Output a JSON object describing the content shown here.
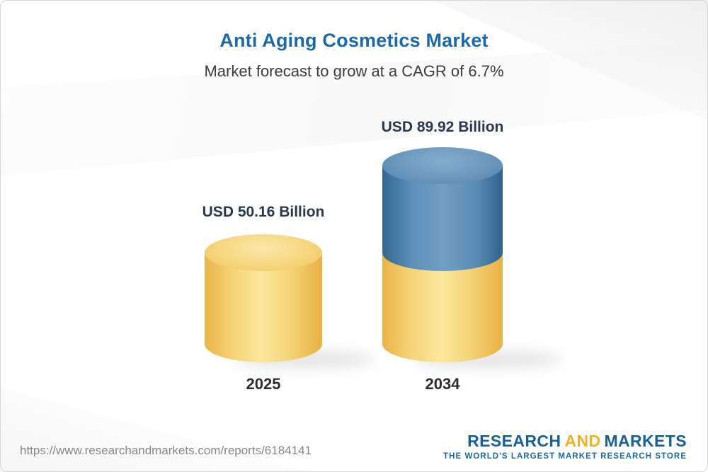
{
  "header": {
    "title": "Anti Aging Cosmetics Market",
    "subtitle": "Market forecast to grow at a CAGR of 6.7%"
  },
  "chart_data": {
    "type": "bar",
    "style": "3d-cylinder pictorial bars, no axes, no gridlines",
    "title": "Anti Aging Cosmetics Market",
    "subtitle": "Market forecast to grow at a CAGR of 6.7%",
    "unit": "USD Billion",
    "cagr_percent": 6.7,
    "categories": [
      "2025",
      "2034"
    ],
    "values": [
      50.16,
      89.92
    ],
    "bars": [
      {
        "year": "2025",
        "value": 50.16,
        "label": "USD 50.16 Billion",
        "color": "#f3cb66"
      },
      {
        "year": "2034",
        "value": 89.92,
        "label": "USD 89.92 Billion",
        "base_color": "#f3cb66",
        "top_color": "#4c7fa8",
        "note": "base segment height equals 2025 value; growth increment shown in blue"
      }
    ],
    "colors": {
      "gold": "#f3cb66",
      "blue": "#4c7fa8",
      "label_text": "#27394e"
    }
  },
  "footer": {
    "url": "https://www.researchandmarkets.com/reports/6184141",
    "logo": {
      "research": "RESEARCH",
      "and": "AND",
      "markets": "MARKETS",
      "tagline": "THE WORLD'S LARGEST MARKET RESEARCH STORE",
      "brand_blue": "#16619b",
      "brand_gold": "#f3b229"
    }
  }
}
